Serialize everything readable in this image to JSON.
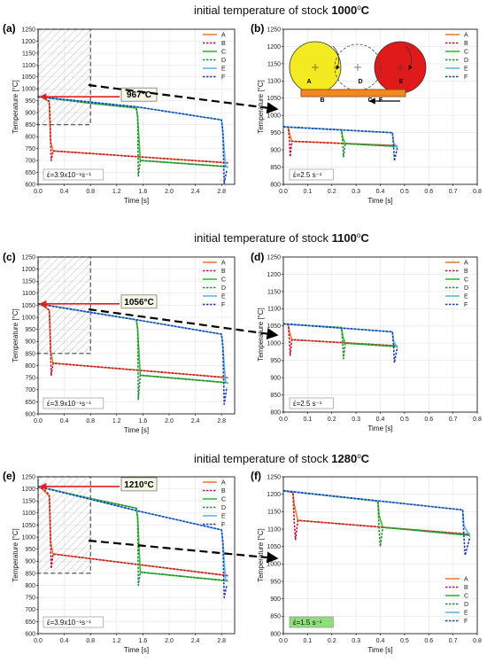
{
  "row_titles": [
    {
      "text": "initial temperature of stock ",
      "value": "1000",
      "sup": "o",
      "unit": "C"
    },
    {
      "text": "initial temperature of stock ",
      "value": "1100",
      "sup": "o",
      "unit": "C"
    },
    {
      "text": "initial temperature of stock ",
      "value": "1280",
      "sup": "o",
      "unit": "C"
    }
  ],
  "colors": {
    "A": "#f07d2a",
    "B": "#b8183a",
    "C": "#2ec02e",
    "D": "#2a8a3a",
    "E": "#5bb8e8",
    "F": "#1f3fa8",
    "grid": "#e4e4e4",
    "arrow": "#e02020",
    "hatch": "#9a9a9a",
    "roll_left": "#f4ea22",
    "roll_right": "#e01a1a",
    "stock": "#f08a20",
    "rate_box_f": "#8ee07a"
  },
  "chart_data": [
    {
      "type": "line",
      "panel": "(a)",
      "xlabel": "Time [s]",
      "ylabel": "Temperature [°C]",
      "xlim": [
        0,
        3.0
      ],
      "ylim": [
        600,
        1250
      ],
      "xticks": [
        "0.0",
        "0.4",
        "0.8",
        "1.2",
        "1.6",
        "2.0",
        "2.4",
        "2.8"
      ],
      "yticks": [
        "600",
        "650",
        "700",
        "750",
        "800",
        "850",
        "900",
        "950",
        "1000",
        "1050",
        "1100",
        "1150",
        "1200",
        "1250"
      ],
      "legend": [
        "A",
        "B",
        "C",
        "D",
        "E",
        "F"
      ],
      "legend_position": "top-right",
      "annotation": "967°C",
      "rate": "έ=3.9x10⁻¹s⁻¹",
      "series": [
        {
          "name": "A",
          "style": "solid",
          "x": [
            0,
            0.06,
            0.12,
            0.17,
            0.19,
            0.23,
            2.9
          ],
          "y": [
            967,
            965,
            955,
            945,
            780,
            740,
            690
          ]
        },
        {
          "name": "B",
          "style": "dashed",
          "x": [
            0,
            0.1,
            0.17,
            0.18,
            0.2,
            0.23,
            2.9
          ],
          "y": [
            967,
            962,
            948,
            900,
            700,
            740,
            690
          ]
        },
        {
          "name": "C",
          "style": "solid",
          "x": [
            0,
            0.8,
            1.5,
            1.52,
            1.56,
            2.85,
            2.9
          ],
          "y": [
            967,
            940,
            920,
            880,
            700,
            675,
            672
          ]
        },
        {
          "name": "D",
          "style": "dashed",
          "x": [
            0,
            0.8,
            1.5,
            1.52,
            1.53,
            1.56,
            2.85,
            2.9
          ],
          "y": [
            967,
            940,
            920,
            880,
            635,
            700,
            675,
            672
          ]
        },
        {
          "name": "E",
          "style": "solid",
          "x": [
            0,
            1.5,
            2.8,
            2.82,
            2.86,
            2.9
          ],
          "y": [
            967,
            925,
            870,
            820,
            680,
            670
          ]
        },
        {
          "name": "F",
          "style": "dashed",
          "x": [
            0,
            1.5,
            2.8,
            2.82,
            2.84,
            2.88
          ],
          "y": [
            967,
            925,
            870,
            820,
            605,
            660
          ]
        }
      ]
    },
    {
      "type": "line",
      "panel": "(b)",
      "xlabel": "Time [s]",
      "ylabel": "Temperature [°C]",
      "xlim": [
        0,
        0.8
      ],
      "ylim": [
        800,
        1250
      ],
      "xticks": [
        "0.0",
        "0.1",
        "0.2",
        "0.3",
        "0.4",
        "0.5",
        "0.6",
        "0.7",
        "0.8"
      ],
      "yticks": [
        "800",
        "850",
        "900",
        "950",
        "1000",
        "1050",
        "1100",
        "1150",
        "1200",
        "1250"
      ],
      "legend": [
        "A",
        "B",
        "C",
        "D",
        "E",
        "F"
      ],
      "legend_position": "top-right",
      "rate": "έ=2.5 s⁻¹",
      "diagram_labels": [
        "A",
        "B",
        "C",
        "D",
        "E",
        "F"
      ],
      "series": [
        {
          "name": "A",
          "style": "solid",
          "x": [
            0,
            0.02,
            0.025,
            0.035,
            0.47
          ],
          "y": [
            967,
            966,
            950,
            925,
            912
          ]
        },
        {
          "name": "B",
          "style": "dashed",
          "x": [
            0,
            0.02,
            0.025,
            0.028,
            0.035,
            0.47
          ],
          "y": [
            967,
            966,
            930,
            880,
            925,
            912
          ]
        },
        {
          "name": "C",
          "style": "solid",
          "x": [
            0,
            0.24,
            0.245,
            0.255,
            0.47
          ],
          "y": [
            967,
            958,
            935,
            918,
            910
          ]
        },
        {
          "name": "D",
          "style": "dashed",
          "x": [
            0,
            0.24,
            0.245,
            0.248,
            0.255,
            0.47
          ],
          "y": [
            967,
            958,
            920,
            880,
            918,
            910
          ]
        },
        {
          "name": "E",
          "style": "solid",
          "x": [
            0,
            0.45,
            0.455,
            0.47
          ],
          "y": [
            967,
            950,
            920,
            905
          ]
        },
        {
          "name": "F",
          "style": "dashed",
          "x": [
            0,
            0.45,
            0.455,
            0.458,
            0.47
          ],
          "y": [
            967,
            950,
            910,
            868,
            905
          ]
        }
      ]
    },
    {
      "type": "line",
      "panel": "(c)",
      "xlabel": "Time [s]",
      "ylabel": "Temperature [°C]",
      "xlim": [
        0,
        3.0
      ],
      "ylim": [
        600,
        1250
      ],
      "xticks": [
        "0.0",
        "0.4",
        "0.8",
        "1.2",
        "1.6",
        "2.0",
        "2.4",
        "2.8"
      ],
      "yticks": [
        "600",
        "650",
        "700",
        "750",
        "800",
        "850",
        "900",
        "950",
        "1000",
        "1050",
        "1100",
        "1150",
        "1200",
        "1250"
      ],
      "legend": [
        "A",
        "B",
        "C",
        "D",
        "E",
        "F"
      ],
      "legend_position": "top-right",
      "annotation": "1056°C",
      "rate": "έ=3.9x10⁻¹s⁻¹",
      "series": [
        {
          "name": "A",
          "style": "solid",
          "x": [
            0,
            0.06,
            0.12,
            0.17,
            0.19,
            0.23,
            2.9
          ],
          "y": [
            1056,
            1050,
            1040,
            1030,
            860,
            810,
            750
          ]
        },
        {
          "name": "B",
          "style": "dashed",
          "x": [
            0,
            0.1,
            0.17,
            0.18,
            0.2,
            0.23,
            2.9
          ],
          "y": [
            1056,
            1045,
            1030,
            990,
            760,
            810,
            750
          ]
        },
        {
          "name": "C",
          "style": "solid",
          "x": [
            0,
            0.8,
            1.5,
            1.52,
            1.56,
            2.85,
            2.9
          ],
          "y": [
            1056,
            1020,
            990,
            950,
            760,
            730,
            728
          ]
        },
        {
          "name": "D",
          "style": "dashed",
          "x": [
            0,
            0.8,
            1.5,
            1.52,
            1.53,
            1.56,
            2.85,
            2.9
          ],
          "y": [
            1056,
            1020,
            990,
            950,
            660,
            760,
            730,
            728
          ]
        },
        {
          "name": "E",
          "style": "solid",
          "x": [
            0,
            1.5,
            2.8,
            2.82,
            2.86,
            2.9
          ],
          "y": [
            1056,
            990,
            930,
            880,
            735,
            725
          ]
        },
        {
          "name": "F",
          "style": "dashed",
          "x": [
            0,
            1.5,
            2.8,
            2.82,
            2.84,
            2.88
          ],
          "y": [
            1056,
            990,
            930,
            880,
            640,
            710
          ]
        }
      ]
    },
    {
      "type": "line",
      "panel": "(d)",
      "xlabel": "Time [s]",
      "ylabel": "Temperature [°C]",
      "xlim": [
        0,
        0.8
      ],
      "ylim": [
        800,
        1250
      ],
      "xticks": [
        "0.0",
        "0.1",
        "0.2",
        "0.3",
        "0.4",
        "0.5",
        "0.6",
        "0.7",
        "0.8"
      ],
      "yticks": [
        "800",
        "850",
        "900",
        "950",
        "1000",
        "1050",
        "1100",
        "1150",
        "1200",
        "1250"
      ],
      "legend": [
        "A",
        "B",
        "C",
        "D",
        "E",
        "F"
      ],
      "legend_position": "top-right",
      "rate": "έ=2.5 s⁻¹",
      "series": [
        {
          "name": "A",
          "style": "solid",
          "x": [
            0,
            0.02,
            0.025,
            0.035,
            0.47
          ],
          "y": [
            1056,
            1054,
            1035,
            1010,
            992
          ]
        },
        {
          "name": "B",
          "style": "dashed",
          "x": [
            0,
            0.02,
            0.025,
            0.028,
            0.035,
            0.47
          ],
          "y": [
            1056,
            1054,
            1010,
            965,
            1010,
            992
          ]
        },
        {
          "name": "C",
          "style": "solid",
          "x": [
            0,
            0.24,
            0.245,
            0.255,
            0.47
          ],
          "y": [
            1056,
            1045,
            1020,
            1000,
            990
          ]
        },
        {
          "name": "D",
          "style": "dashed",
          "x": [
            0,
            0.24,
            0.245,
            0.248,
            0.255,
            0.47
          ],
          "y": [
            1056,
            1045,
            1000,
            955,
            1000,
            990
          ]
        },
        {
          "name": "E",
          "style": "solid",
          "x": [
            0,
            0.45,
            0.455,
            0.47
          ],
          "y": [
            1056,
            1033,
            1005,
            988
          ]
        },
        {
          "name": "F",
          "style": "dashed",
          "x": [
            0,
            0.45,
            0.455,
            0.458,
            0.47
          ],
          "y": [
            1056,
            1033,
            990,
            943,
            988
          ]
        }
      ]
    },
    {
      "type": "line",
      "panel": "(e)",
      "xlabel": "Time [s]",
      "ylabel": "Temperature [°C]",
      "xlim": [
        0,
        3.0
      ],
      "ylim": [
        600,
        1250
      ],
      "xticks": [
        "0.0",
        "0.4",
        "0.8",
        "1.2",
        "1.6",
        "2.0",
        "2.4",
        "2.8"
      ],
      "yticks": [
        "600",
        "650",
        "700",
        "750",
        "800",
        "850",
        "900",
        "950",
        "1000",
        "1050",
        "1100",
        "1150",
        "1200",
        "1250"
      ],
      "legend": [
        "A",
        "B",
        "C",
        "D",
        "E",
        "F"
      ],
      "legend_position": "top-right",
      "annotation": "1210°C",
      "rate": "έ=3.9x10⁻¹s⁻¹",
      "series": [
        {
          "name": "A",
          "style": "solid",
          "x": [
            0,
            0.06,
            0.12,
            0.17,
            0.19,
            0.23,
            2.9
          ],
          "y": [
            1210,
            1200,
            1185,
            1170,
            980,
            930,
            840
          ]
        },
        {
          "name": "B",
          "style": "dashed",
          "x": [
            0,
            0.1,
            0.17,
            0.18,
            0.2,
            0.23,
            2.9
          ],
          "y": [
            1210,
            1195,
            1175,
            1120,
            870,
            930,
            840
          ]
        },
        {
          "name": "C",
          "style": "solid",
          "x": [
            0,
            0.8,
            1.5,
            1.52,
            1.56,
            2.85,
            2.9
          ],
          "y": [
            1210,
            1160,
            1120,
            1080,
            855,
            820,
            818
          ]
        },
        {
          "name": "D",
          "style": "dashed",
          "x": [
            0,
            0.8,
            1.5,
            1.52,
            1.53,
            1.56,
            2.85,
            2.9
          ],
          "y": [
            1210,
            1160,
            1120,
            1080,
            800,
            855,
            820,
            818
          ]
        },
        {
          "name": "E",
          "style": "solid",
          "x": [
            0,
            1.5,
            2.8,
            2.82,
            2.86,
            2.9
          ],
          "y": [
            1210,
            1110,
            1030,
            980,
            830,
            815
          ]
        },
        {
          "name": "F",
          "style": "dashed",
          "x": [
            0,
            1.5,
            2.8,
            2.82,
            2.84,
            2.88
          ],
          "y": [
            1210,
            1110,
            1030,
            980,
            750,
            800
          ]
        }
      ]
    },
    {
      "type": "line",
      "panel": "(f)",
      "xlabel": "Time [s]",
      "ylabel": "Temperature [°C]",
      "xlim": [
        0,
        0.8
      ],
      "ylim": [
        800,
        1250
      ],
      "xticks": [
        "0.0",
        "0.1",
        "0.2",
        "0.3",
        "0.4",
        "0.5",
        "0.6",
        "0.7",
        "0.8"
      ],
      "yticks": [
        "800",
        "850",
        "900",
        "950",
        "1000",
        "1050",
        "1100",
        "1150",
        "1200",
        "1250"
      ],
      "legend": [
        "A",
        "B",
        "C",
        "D",
        "E",
        "F"
      ],
      "legend_position": "bottom-right",
      "rate": "έ=1.5 s⁻¹",
      "series": [
        {
          "name": "A",
          "style": "solid",
          "x": [
            0,
            0.04,
            0.045,
            0.06,
            0.77
          ],
          "y": [
            1210,
            1205,
            1170,
            1125,
            1085
          ]
        },
        {
          "name": "B",
          "style": "dashed",
          "x": [
            0,
            0.04,
            0.045,
            0.05,
            0.06,
            0.77
          ],
          "y": [
            1210,
            1205,
            1120,
            1070,
            1125,
            1085
          ]
        },
        {
          "name": "C",
          "style": "solid",
          "x": [
            0,
            0.39,
            0.395,
            0.41,
            0.77
          ],
          "y": [
            1210,
            1180,
            1140,
            1105,
            1082
          ]
        },
        {
          "name": "D",
          "style": "dashed",
          "x": [
            0,
            0.39,
            0.395,
            0.4,
            0.41,
            0.77
          ],
          "y": [
            1210,
            1180,
            1100,
            1050,
            1105,
            1082
          ]
        },
        {
          "name": "E",
          "style": "solid",
          "x": [
            0,
            0.74,
            0.745,
            0.77
          ],
          "y": [
            1210,
            1155,
            1110,
            1080
          ]
        },
        {
          "name": "F",
          "style": "dashed",
          "x": [
            0,
            0.74,
            0.745,
            0.75,
            0.77
          ],
          "y": [
            1210,
            1155,
            1080,
            1025,
            1078
          ]
        }
      ]
    }
  ]
}
